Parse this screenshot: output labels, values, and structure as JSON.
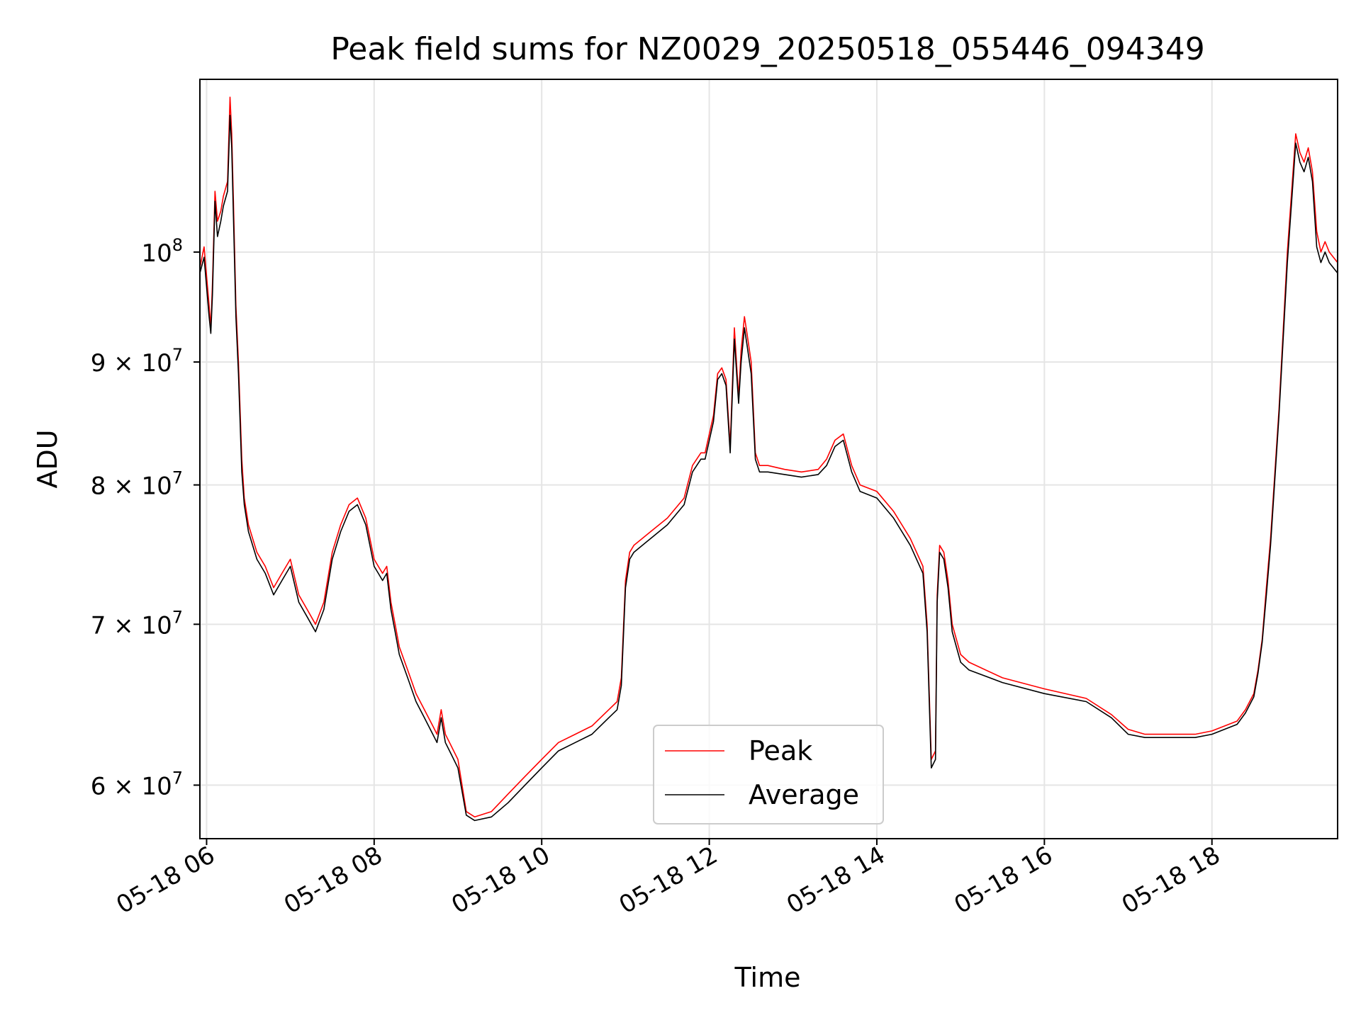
{
  "chart_data": {
    "type": "line",
    "title": "Peak field sums for NZ0029_20250518_055446_094349",
    "xlabel": "Time",
    "ylabel": "ADU",
    "x_unit": "hours (2025-05-18)",
    "xlim": [
      5.92,
      19.5
    ],
    "ylim": [
      57000000,
      118000000
    ],
    "yscale": "log",
    "grid": true,
    "x_ticks": [
      {
        "value": 6,
        "label": "05-18 06"
      },
      {
        "value": 8,
        "label": "05-18 08"
      },
      {
        "value": 10,
        "label": "05-18 10"
      },
      {
        "value": 12,
        "label": "05-18 12"
      },
      {
        "value": 14,
        "label": "05-18 14"
      },
      {
        "value": 16,
        "label": "05-18 16"
      },
      {
        "value": 18,
        "label": "05-18 18"
      }
    ],
    "y_ticks": [
      {
        "value": 60000000,
        "base": "6 × 10",
        "exp": "7"
      },
      {
        "value": 70000000,
        "base": "7 × 10",
        "exp": "7"
      },
      {
        "value": 80000000,
        "base": "8 × 10",
        "exp": "7"
      },
      {
        "value": 90000000,
        "base": "9 × 10",
        "exp": "7"
      },
      {
        "value": 100000000,
        "base": "10",
        "exp": "8"
      }
    ],
    "legend": {
      "position": "lower center"
    },
    "series": [
      {
        "name": "Peak",
        "color": "#ff0000",
        "x": [
          5.92,
          5.97,
          6.03,
          6.05,
          6.07,
          6.1,
          6.13,
          6.17,
          6.2,
          6.25,
          6.28,
          6.3,
          6.32,
          6.35,
          6.38,
          6.42,
          6.45,
          6.5,
          6.6,
          6.7,
          6.8,
          6.9,
          7.0,
          7.1,
          7.2,
          7.3,
          7.4,
          7.5,
          7.6,
          7.7,
          7.8,
          7.9,
          8.0,
          8.05,
          8.1,
          8.15,
          8.2,
          8.25,
          8.3,
          8.4,
          8.5,
          8.6,
          8.7,
          8.75,
          8.8,
          8.85,
          8.9,
          9.0,
          9.1,
          9.2,
          9.4,
          9.6,
          9.8,
          10.0,
          10.2,
          10.4,
          10.6,
          10.8,
          10.9,
          10.95,
          11.0,
          11.05,
          11.1,
          11.3,
          11.5,
          11.7,
          11.8,
          11.85,
          11.9,
          11.95,
          12.05,
          12.1,
          12.15,
          12.2,
          12.25,
          12.3,
          12.35,
          12.38,
          12.42,
          12.45,
          12.5,
          12.55,
          12.6,
          12.7,
          12.9,
          13.1,
          13.3,
          13.4,
          13.5,
          13.6,
          13.7,
          13.8,
          14.0,
          14.2,
          14.4,
          14.55,
          14.6,
          14.65,
          14.7,
          14.72,
          14.75,
          14.8,
          14.85,
          14.9,
          15.0,
          15.1,
          15.5,
          16.0,
          16.5,
          16.8,
          17.0,
          17.2,
          17.5,
          17.8,
          18.0,
          18.3,
          18.4,
          18.5,
          18.55,
          18.6,
          18.65,
          18.7,
          18.8,
          18.9,
          19.0,
          19.05,
          19.1,
          19.15,
          19.2,
          19.25,
          19.3,
          19.35,
          19.4,
          19.45,
          19.5
        ],
        "values": [
          98500000,
          100500000,
          95000000,
          93000000,
          97000000,
          106000000,
          103000000,
          104000000,
          105500000,
          107000000,
          116000000,
          112000000,
          105000000,
          95000000,
          90000000,
          82000000,
          79000000,
          77000000,
          75000000,
          74000000,
          72500000,
          73500000,
          74500000,
          72000000,
          71000000,
          70000000,
          71500000,
          75000000,
          77000000,
          78500000,
          79000000,
          77500000,
          74500000,
          74000000,
          73500000,
          74000000,
          71500000,
          70000000,
          68500000,
          67000000,
          65500000,
          64500000,
          63500000,
          63000000,
          64500000,
          63000000,
          62500000,
          61500000,
          58500000,
          58200000,
          58500000,
          59500000,
          60500000,
          61500000,
          62500000,
          63000000,
          63500000,
          64500000,
          65000000,
          66500000,
          73000000,
          75000000,
          75500000,
          76500000,
          77500000,
          79000000,
          81500000,
          82000000,
          82500000,
          82500000,
          85500000,
          89000000,
          89500000,
          88500000,
          83000000,
          93000000,
          87000000,
          91000000,
          94000000,
          92500000,
          90000000,
          82500000,
          81500000,
          81500000,
          81200000,
          81000000,
          81200000,
          82000000,
          83500000,
          84000000,
          81500000,
          80000000,
          79500000,
          78000000,
          76000000,
          74000000,
          70000000,
          61500000,
          62000000,
          72000000,
          75500000,
          75000000,
          73000000,
          70000000,
          68000000,
          67500000,
          66500000,
          65800000,
          65200000,
          64200000,
          63300000,
          63000000,
          63000000,
          63000000,
          63200000,
          63800000,
          64500000,
          65500000,
          67000000,
          69000000,
          72500000,
          76000000,
          86000000,
          100000000,
          112000000,
          110000000,
          109000000,
          110500000,
          108000000,
          102000000,
          100000000,
          101000000,
          100000000,
          99500000,
          99000000
        ]
      },
      {
        "name": "Average",
        "color": "#000000",
        "x": [
          5.92,
          5.97,
          6.03,
          6.05,
          6.07,
          6.1,
          6.13,
          6.17,
          6.2,
          6.25,
          6.28,
          6.3,
          6.32,
          6.35,
          6.38,
          6.42,
          6.45,
          6.5,
          6.6,
          6.7,
          6.8,
          6.9,
          7.0,
          7.1,
          7.2,
          7.3,
          7.4,
          7.5,
          7.6,
          7.7,
          7.8,
          7.9,
          8.0,
          8.05,
          8.1,
          8.15,
          8.2,
          8.25,
          8.3,
          8.4,
          8.5,
          8.6,
          8.7,
          8.75,
          8.8,
          8.85,
          8.9,
          9.0,
          9.1,
          9.2,
          9.4,
          9.6,
          9.8,
          10.0,
          10.2,
          10.4,
          10.6,
          10.8,
          10.9,
          10.95,
          11.0,
          11.05,
          11.1,
          11.3,
          11.5,
          11.7,
          11.8,
          11.85,
          11.9,
          11.95,
          12.05,
          12.1,
          12.15,
          12.2,
          12.25,
          12.3,
          12.35,
          12.38,
          12.42,
          12.45,
          12.5,
          12.55,
          12.6,
          12.7,
          12.9,
          13.1,
          13.3,
          13.4,
          13.5,
          13.6,
          13.7,
          13.8,
          14.0,
          14.2,
          14.4,
          14.55,
          14.6,
          14.65,
          14.7,
          14.72,
          14.75,
          14.8,
          14.85,
          14.9,
          15.0,
          15.1,
          15.5,
          16.0,
          16.5,
          16.8,
          17.0,
          17.2,
          17.5,
          17.8,
          18.0,
          18.3,
          18.4,
          18.5,
          18.55,
          18.6,
          18.65,
          18.7,
          18.8,
          18.9,
          19.0,
          19.05,
          19.1,
          19.15,
          19.2,
          19.25,
          19.3,
          19.35,
          19.4,
          19.45,
          19.5
        ],
        "values": [
          98000000,
          99500000,
          94000000,
          92500000,
          96000000,
          105000000,
          101500000,
          103000000,
          104500000,
          106000000,
          114000000,
          110500000,
          103500000,
          94000000,
          89000000,
          81000000,
          78500000,
          76500000,
          74500000,
          73500000,
          72000000,
          73000000,
          74000000,
          71500000,
          70500000,
          69500000,
          71000000,
          74500000,
          76500000,
          78000000,
          78500000,
          77000000,
          74000000,
          73500000,
          73000000,
          73500000,
          71000000,
          69500000,
          68000000,
          66500000,
          65000000,
          64000000,
          63000000,
          62500000,
          64000000,
          62500000,
          62000000,
          61000000,
          58300000,
          58000000,
          58200000,
          59000000,
          60000000,
          61000000,
          62000000,
          62500000,
          63000000,
          64000000,
          64500000,
          66000000,
          72500000,
          74500000,
          75000000,
          76000000,
          77000000,
          78500000,
          81000000,
          81500000,
          82000000,
          82000000,
          85000000,
          88500000,
          89000000,
          88000000,
          82500000,
          92000000,
          86500000,
          90000000,
          93000000,
          91500000,
          89000000,
          82000000,
          81000000,
          81000000,
          80800000,
          80600000,
          80800000,
          81500000,
          83000000,
          83500000,
          81000000,
          79500000,
          79000000,
          77500000,
          75500000,
          73500000,
          69500000,
          61000000,
          61500000,
          71500000,
          75000000,
          74500000,
          72500000,
          69500000,
          67500000,
          67000000,
          66200000,
          65500000,
          65000000,
          64000000,
          63000000,
          62800000,
          62800000,
          62800000,
          63000000,
          63600000,
          64300000,
          65300000,
          66800000,
          68800000,
          72000000,
          75500000,
          85500000,
          99000000,
          111000000,
          109000000,
          108000000,
          109500000,
          107000000,
          100500000,
          99000000,
          100000000,
          99000000,
          98500000,
          98000000
        ]
      }
    ]
  }
}
